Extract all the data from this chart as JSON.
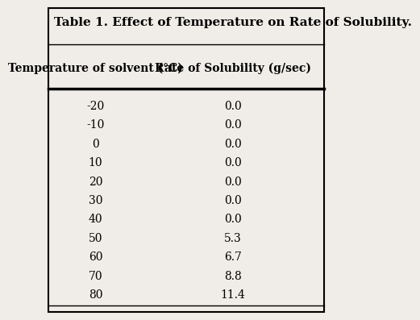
{
  "title": "Table 1. Effect of Temperature on Rate of Solubility.",
  "col1_header": "Temperature of solvent (°C)",
  "col2_header": "Rate of Solubility (g/sec)",
  "temperatures": [
    "-20",
    "-10",
    "0",
    "10",
    "20",
    "30",
    "40",
    "50",
    "60",
    "70",
    "80"
  ],
  "solubility": [
    "0.0",
    "0.0",
    "0.0",
    "0.0",
    "0.0",
    "0.0",
    "0.0",
    "5.3",
    "6.7",
    "8.8",
    "11.4"
  ],
  "bg_color": "#f0ede8",
  "text_color": "#000000",
  "title_fontsize": 11,
  "header_fontsize": 10,
  "data_fontsize": 10
}
